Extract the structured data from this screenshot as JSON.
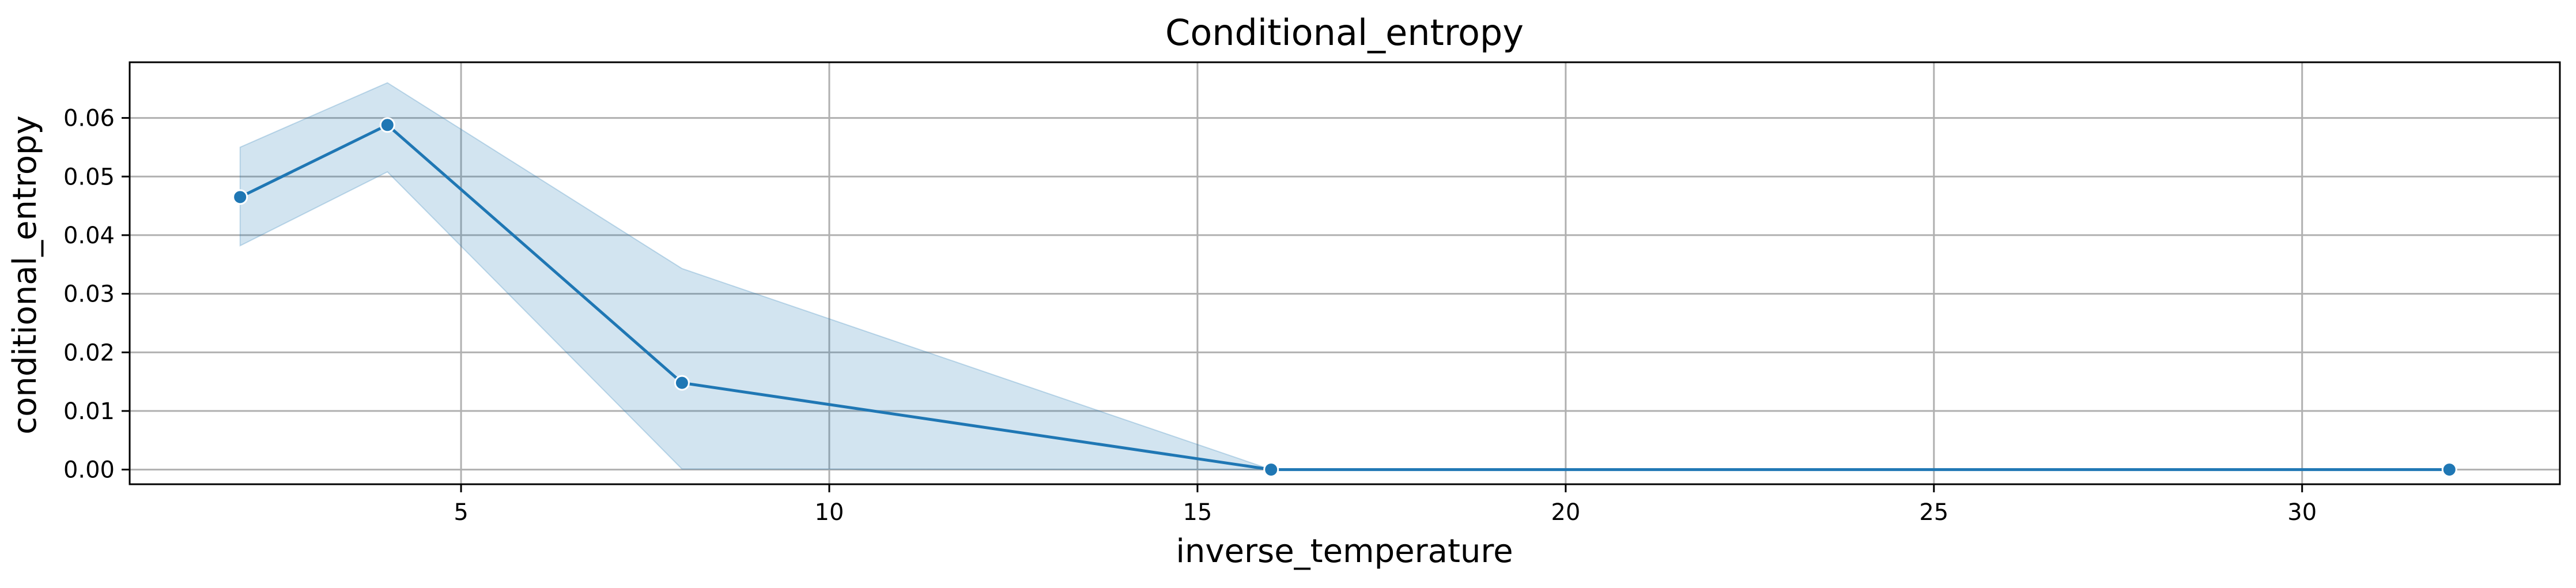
{
  "chart_data": {
    "type": "line",
    "title": "Conditional_entropy",
    "xlabel": "inverse_temperature",
    "ylabel": "conditional_entropy",
    "xlim": [
      0.5,
      33.5
    ],
    "ylim": [
      -0.0025,
      0.0695
    ],
    "xticks": [
      5,
      10,
      15,
      20,
      25,
      30
    ],
    "xtick_labels": [
      "5",
      "10",
      "15",
      "20",
      "25",
      "30"
    ],
    "yticks": [
      0.0,
      0.01,
      0.02,
      0.03,
      0.04,
      0.05,
      0.06
    ],
    "ytick_labels": [
      "0.00",
      "0.01",
      "0.02",
      "0.03",
      "0.04",
      "0.05",
      "0.06"
    ],
    "grid": true,
    "legend": false,
    "series": [
      {
        "x": [
          2,
          4,
          8,
          16,
          32
        ],
        "y": [
          0.0465,
          0.0588,
          0.0148,
          0.0,
          0.0
        ],
        "ci_lower": [
          0.0382,
          0.0508,
          0.0001,
          0.0,
          0.0
        ],
        "ci_upper": [
          0.055,
          0.066,
          0.0343,
          0.0,
          0.0
        ],
        "color": "#1f77b4",
        "band_color": "#1f77b4",
        "markers": true
      }
    ]
  }
}
